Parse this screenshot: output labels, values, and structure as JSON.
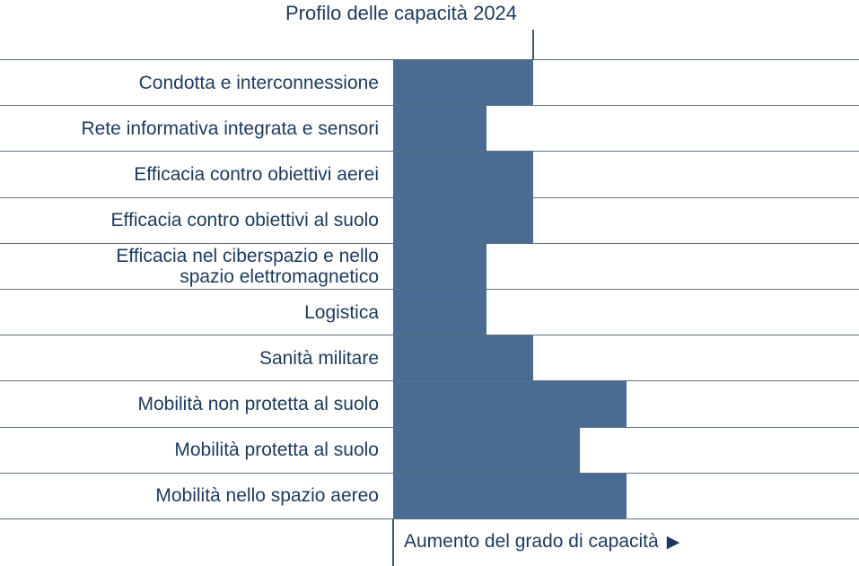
{
  "title": "Profilo delle capacità 2024",
  "x_axis": {
    "label": "Aumento del grado di capacità",
    "arrow": "▶"
  },
  "colors": {
    "bar": "#4a6b93",
    "text": "#1d3a5c",
    "gridline": "#5d6e7c",
    "axis": "#44576b",
    "background": "#ffffff"
  },
  "chart_data": {
    "type": "bar",
    "orientation": "horizontal",
    "title": "Profilo delle capacità 2024",
    "xlabel": "Aumento del grado di capacità",
    "ylabel": "",
    "categories": [
      "Condotta e interconnessione",
      "Rete informativa integrata e sensori",
      "Efficacia contro obiettivi aerei",
      "Efficacia contro obiettivi al suolo",
      "Efficacia nel ciberspazio e nello\nspazio elettromagnetico",
      "Logistica",
      "Sanità militare",
      "Mobilità non protetta al suolo",
      "Mobilità protetta al suolo",
      "Mobilità nello spazio aereo"
    ],
    "values": [
      3,
      2,
      3,
      3,
      2,
      2,
      3,
      5,
      4,
      5
    ],
    "xlim": [
      0,
      10
    ],
    "reference_level": 3,
    "grid": "row-separators",
    "legend": "none",
    "data_labels": "none",
    "x_ticks": "none"
  }
}
